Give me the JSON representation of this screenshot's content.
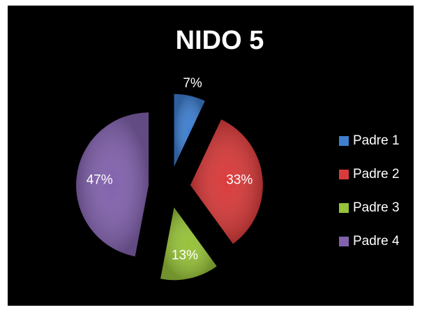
{
  "chart_data": {
    "type": "pie",
    "title": "NIDO 5",
    "categories": [
      "Padre 1",
      "Padre 2",
      "Padre 3",
      "Padre 4"
    ],
    "values": [
      7,
      33,
      13,
      47
    ],
    "value_labels": [
      "7%",
      "33%",
      "13%",
      "47%"
    ],
    "colors": [
      "#3f7fd0",
      "#d93b3b",
      "#97c23a",
      "#8262ad"
    ],
    "exploded": true,
    "legend": "right"
  }
}
